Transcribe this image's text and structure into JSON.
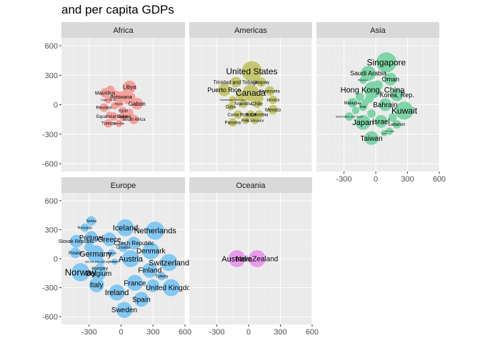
{
  "title": "and per capita GDPs",
  "colors": {
    "panel_bg": "#EBEBEB",
    "strip_bg": "#D9D9D9",
    "grid_major": "#FFFFFF",
    "grid_minor": "#F5F5F5",
    "tick": "#333333",
    "Africa": "#F4A09C",
    "Americas": "#C5C770",
    "Asia": "#7FD4A8",
    "Europe": "#83C8F2",
    "Oceania": "#E79BEA"
  },
  "chart_data": {
    "type": "scatter",
    "title": "and per capita GDPs",
    "xlabel": "",
    "ylabel": "",
    "xlim": [
      -560,
      600
    ],
    "ylim": [
      -680,
      680
    ],
    "x_ticks": [
      -300,
      0,
      300,
      600
    ],
    "y_ticks": [
      -600,
      -300,
      0,
      300,
      600
    ],
    "x_tick_labels": [
      "-300",
      "0",
      "300",
      "600"
    ],
    "y_tick_labels": [
      "-600",
      "-300",
      "0",
      "300",
      "600"
    ],
    "grid": true,
    "facets": [
      {
        "name": "Africa",
        "points": [
          {
            "label": "Libya",
            "x": 80,
            "y": 180,
            "r": 60,
            "fs": 8
          },
          {
            "label": "Mauritius",
            "x": -150,
            "y": 120,
            "r": 45,
            "fs": 7
          },
          {
            "label": "Botswana",
            "x": 0,
            "y": 80,
            "r": 50,
            "fs": 7
          },
          {
            "label": "Gabon",
            "x": 150,
            "y": 10,
            "r": 55,
            "fs": 8
          },
          {
            "label": "",
            "x": -100,
            "y": 150,
            "r": 40,
            "fs": 5
          },
          {
            "label": "",
            "x": -50,
            "y": 100,
            "r": 40,
            "fs": 5
          },
          {
            "label": "",
            "x": 50,
            "y": 120,
            "r": 40,
            "fs": 5
          },
          {
            "label": "Cape Verde",
            "x": -120,
            "y": 50,
            "r": 35,
            "fs": 4
          },
          {
            "label": "Algeria",
            "x": -20,
            "y": 10,
            "r": 35,
            "fs": 4
          },
          {
            "label": "Reunion",
            "x": -160,
            "y": -30,
            "r": 40,
            "fs": 6
          },
          {
            "label": "",
            "x": -60,
            "y": -10,
            "r": 35,
            "fs": 5
          },
          {
            "label": "",
            "x": 60,
            "y": 40,
            "r": 35,
            "fs": 5
          },
          {
            "label": "Egypt",
            "x": 20,
            "y": -60,
            "r": 35,
            "fs": 5
          },
          {
            "label": "Equatorial Guinea",
            "x": -70,
            "y": -120,
            "r": 40,
            "fs": 6
          },
          {
            "label": "Gabon",
            "x": 20,
            "y": -120,
            "r": 40,
            "fs": 5
          },
          {
            "label": "South Africa",
            "x": 120,
            "y": -150,
            "r": 45,
            "fs": 6
          },
          {
            "label": "Tunisia",
            "x": -120,
            "y": -190,
            "r": 40,
            "fs": 6
          },
          {
            "label": "Namibia",
            "x": -20,
            "y": -190,
            "r": 35,
            "fs": 4
          },
          {
            "label": "",
            "x": 80,
            "y": -80,
            "r": 35,
            "fs": 5
          },
          {
            "label": "",
            "x": -110,
            "y": -100,
            "r": 30,
            "fs": 5
          },
          {
            "label": "",
            "x": 100,
            "y": 80,
            "r": 35,
            "fs": 5
          },
          {
            "label": "",
            "x": -30,
            "y": 50,
            "r": 30,
            "fs": 5
          }
        ]
      },
      {
        "name": "Americas",
        "points": [
          {
            "label": "United States",
            "x": 30,
            "y": 340,
            "r": 95,
            "fs": 12
          },
          {
            "label": "Canada",
            "x": 20,
            "y": 120,
            "r": 80,
            "fs": 12
          },
          {
            "label": "Puerto Rico",
            "x": -230,
            "y": 150,
            "r": 60,
            "fs": 9
          },
          {
            "label": "Trinidad and Tobago",
            "x": -120,
            "y": 230,
            "r": 50,
            "fs": 7
          },
          {
            "label": "Uruguay",
            "x": 120,
            "y": 230,
            "r": 45,
            "fs": 6
          },
          {
            "label": "Venezuela",
            "x": 200,
            "y": 140,
            "r": 45,
            "fs": 6
          },
          {
            "label": "Jamaica",
            "x": 230,
            "y": 50,
            "r": 40,
            "fs": 5
          },
          {
            "label": "Argentina",
            "x": -50,
            "y": 10,
            "r": 40,
            "fs": 6
          },
          {
            "label": "Chile",
            "x": 80,
            "y": 10,
            "r": 40,
            "fs": 7
          },
          {
            "label": "Mexico",
            "x": 230,
            "y": -50,
            "r": 45,
            "fs": 7
          },
          {
            "label": "Panama",
            "x": -150,
            "y": -180,
            "r": 40,
            "fs": 6
          },
          {
            "label": "Dominican Republic",
            "x": -150,
            "y": 50,
            "r": 35,
            "fs": 4
          },
          {
            "label": "Cuba",
            "x": -170,
            "y": -20,
            "r": 35,
            "fs": 6
          },
          {
            "label": "Costa Rica",
            "x": -100,
            "y": -100,
            "r": 40,
            "fs": 6
          },
          {
            "label": "Brazil",
            "x": 20,
            "y": -100,
            "r": 40,
            "fs": 6
          },
          {
            "label": "Colombia",
            "x": 100,
            "y": -100,
            "r": 40,
            "fs": 6
          },
          {
            "label": "El Salvador",
            "x": 60,
            "y": -160,
            "r": 35,
            "fs": 5
          },
          {
            "label": "Peru",
            "x": -30,
            "y": -160,
            "r": 35,
            "fs": 5
          },
          {
            "label": "",
            "x": 100,
            "y": 70,
            "r": 40,
            "fs": 5
          },
          {
            "label": "",
            "x": -80,
            "y": 90,
            "r": 40,
            "fs": 5
          }
        ]
      },
      {
        "name": "Asia",
        "points": [
          {
            "label": "Singapore",
            "x": 100,
            "y": 430,
            "r": 95,
            "fs": 12
          },
          {
            "label": "Saudi Arabia",
            "x": -70,
            "y": 320,
            "r": 70,
            "fs": 9
          },
          {
            "label": "Oman",
            "x": 140,
            "y": 260,
            "r": 60,
            "fs": 9
          },
          {
            "label": "Hong Kong, China",
            "x": -30,
            "y": 150,
            "r": 80,
            "fs": 11
          },
          {
            "label": "Korea, Rep.",
            "x": 200,
            "y": 100,
            "r": 60,
            "fs": 9
          },
          {
            "label": "Kuwait",
            "x": 270,
            "y": -60,
            "r": 85,
            "fs": 12
          },
          {
            "label": "Bahrain",
            "x": 90,
            "y": 0,
            "r": 60,
            "fs": 10
          },
          {
            "label": "Japan",
            "x": -120,
            "y": -180,
            "r": 70,
            "fs": 11
          },
          {
            "label": "Israel",
            "x": 50,
            "y": -170,
            "r": 60,
            "fs": 10
          },
          {
            "label": "Lebanon",
            "x": 200,
            "y": -200,
            "r": 40,
            "fs": 6
          },
          {
            "label": "Taiwan",
            "x": -40,
            "y": -340,
            "r": 65,
            "fs": 10
          },
          {
            "label": "Malaysia",
            "x": -220,
            "y": 20,
            "r": 45,
            "fs": 6
          },
          {
            "label": "Iran",
            "x": -120,
            "y": -20,
            "r": 40,
            "fs": 5
          },
          {
            "label": "West Bank and Gaza",
            "x": -250,
            "y": -120,
            "r": 40,
            "fs": 4
          },
          {
            "label": "Philippines",
            "x": -120,
            "y": 250,
            "r": 35,
            "fs": 3
          },
          {
            "label": "Sri Lanka",
            "x": 130,
            "y": -270,
            "r": 35,
            "fs": 3
          },
          {
            "label": "Syria",
            "x": 80,
            "y": -290,
            "r": 30,
            "fs": 3
          },
          {
            "label": "",
            "x": -150,
            "y": 80,
            "r": 40,
            "fs": 5
          },
          {
            "label": "",
            "x": -60,
            "y": 60,
            "r": 40,
            "fs": 5
          },
          {
            "label": "",
            "x": 20,
            "y": 200,
            "r": 45,
            "fs": 5
          },
          {
            "label": "",
            "x": -40,
            "y": -90,
            "r": 40,
            "fs": 5
          },
          {
            "label": "",
            "x": -190,
            "y": -60,
            "r": 35,
            "fs": 5
          },
          {
            "label": "",
            "x": 160,
            "y": -130,
            "r": 40,
            "fs": 5
          },
          {
            "label": "",
            "x": -100,
            "y": 20,
            "r": 35,
            "fs": 5
          }
        ]
      },
      {
        "name": "Europe",
        "points": [
          {
            "label": "Serbia",
            "x": -280,
            "y": 390,
            "r": 45,
            "fs": 5
          },
          {
            "label": "Romania",
            "x": -340,
            "y": 320,
            "r": 40,
            "fs": 5
          },
          {
            "label": "Iceland",
            "x": 40,
            "y": 320,
            "r": 80,
            "fs": 11
          },
          {
            "label": "Netherlands",
            "x": 320,
            "y": 290,
            "r": 85,
            "fs": 11
          },
          {
            "label": "Portugal",
            "x": -280,
            "y": 220,
            "r": 60,
            "fs": 9
          },
          {
            "label": "Greece",
            "x": -110,
            "y": 200,
            "r": 65,
            "fs": 10
          },
          {
            "label": "Slovak Republic",
            "x": -420,
            "y": 180,
            "r": 60,
            "fs": 7
          },
          {
            "label": "Czech Republic",
            "x": 120,
            "y": 160,
            "r": 60,
            "fs": 8
          },
          {
            "label": "Croatia",
            "x": 20,
            "y": 120,
            "r": 45,
            "fs": 6
          },
          {
            "label": "Denmark",
            "x": 280,
            "y": 80,
            "r": 80,
            "fs": 10
          },
          {
            "label": "Poland",
            "x": -430,
            "y": 60,
            "r": 50,
            "fs": 6
          },
          {
            "label": "Germany",
            "x": -240,
            "y": 50,
            "r": 80,
            "fs": 11
          },
          {
            "label": "Albania",
            "x": -90,
            "y": 60,
            "r": 35,
            "fs": 4
          },
          {
            "label": "Bosnia and Herzegovina",
            "x": -190,
            "y": -30,
            "r": 35,
            "fs": 4
          },
          {
            "label": "Austria",
            "x": 90,
            "y": 0,
            "r": 80,
            "fs": 11
          },
          {
            "label": "Switzerland",
            "x": 450,
            "y": -40,
            "r": 80,
            "fs": 11
          },
          {
            "label": "Montenegro",
            "x": -60,
            "y": -30,
            "r": 30,
            "fs": 3
          },
          {
            "label": "Hungary",
            "x": -200,
            "y": -100,
            "r": 45,
            "fs": 6
          },
          {
            "label": "Norway",
            "x": -380,
            "y": -140,
            "r": 85,
            "fs": 13
          },
          {
            "label": "Belgium",
            "x": -210,
            "y": -150,
            "r": 70,
            "fs": 10
          },
          {
            "label": "Finland",
            "x": 270,
            "y": -120,
            "r": 70,
            "fs": 10
          },
          {
            "label": "Turkey",
            "x": 380,
            "y": -180,
            "r": 40,
            "fs": 6
          },
          {
            "label": "Italy",
            "x": -230,
            "y": -270,
            "r": 70,
            "fs": 10
          },
          {
            "label": "France",
            "x": 130,
            "y": -250,
            "r": 75,
            "fs": 10
          },
          {
            "label": "United Kingdom",
            "x": 470,
            "y": -300,
            "r": 80,
            "fs": 10
          },
          {
            "label": "Ireland",
            "x": -40,
            "y": -350,
            "r": 75,
            "fs": 11
          },
          {
            "label": "Spain",
            "x": 190,
            "y": -420,
            "r": 70,
            "fs": 10
          },
          {
            "label": "Sweden",
            "x": 30,
            "y": -530,
            "r": 75,
            "fs": 10
          },
          {
            "label": "",
            "x": 300,
            "y": -280,
            "r": 60,
            "fs": 5
          },
          {
            "label": "",
            "x": -300,
            "y": 120,
            "r": 45,
            "fs": 5
          }
        ]
      },
      {
        "name": "Oceania",
        "points": [
          {
            "label": "Australia",
            "x": -110,
            "y": 0,
            "r": 80,
            "fs": 11
          },
          {
            "label": "New Zealand",
            "x": 80,
            "y": 0,
            "r": 80,
            "fs": 10
          }
        ]
      }
    ]
  }
}
